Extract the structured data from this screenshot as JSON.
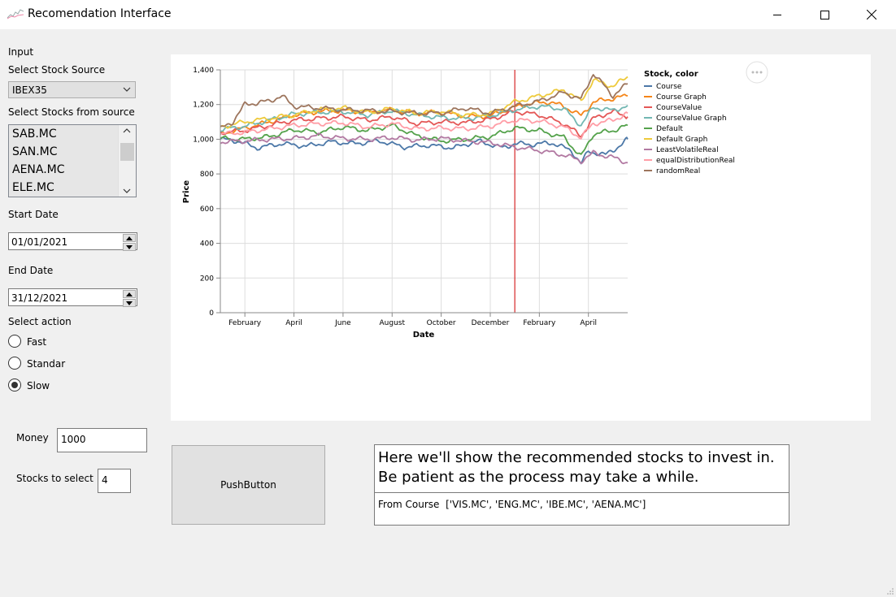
{
  "window": {
    "title": "Recomendation Interface",
    "icon": "chart-icon",
    "controls": [
      "minimize-icon",
      "maximize-icon",
      "close-icon"
    ]
  },
  "input": {
    "section_label": "Input",
    "source_label": "Select Stock Source",
    "source_value": "IBEX35",
    "stocks_label": "Select Stocks from source",
    "stocks": [
      "SAB.MC",
      "SAN.MC",
      "AENA.MC",
      "ELE.MC"
    ],
    "start_label": "Start Date",
    "start_value": "01/01/2021",
    "end_label": "End Date",
    "end_value": "31/12/2021",
    "action_label": "Select action",
    "actions": [
      "Fast",
      "Standar",
      "Slow"
    ],
    "selected_action": "Slow",
    "money_label": "Money",
    "money_value": "1000",
    "count_label": "Stocks to select",
    "count_value": "4"
  },
  "button": {
    "label": "PushButton"
  },
  "results": {
    "heading_line1": "Here we'll show the recommended stocks to invest in.",
    "heading_line2": "Be patient as the process may take a while.",
    "label": "From Course",
    "value": "['VIS.MC', 'ENG.MC', 'IBE.MC', 'AENA.MC']"
  },
  "chart_data": {
    "type": "line",
    "xlabel": "Date",
    "ylabel": "Price",
    "ylim": [
      0,
      1400
    ],
    "yticks": [
      0,
      200,
      400,
      600,
      800,
      1000,
      1200,
      1400
    ],
    "x_tick_labels": [
      "February",
      "April",
      "June",
      "August",
      "October",
      "December",
      "February",
      "April"
    ],
    "x_domain_months": [
      0,
      16.6
    ],
    "tick_months": [
      1,
      3,
      5,
      7,
      9,
      11,
      13,
      15
    ],
    "marker_month": 12,
    "marker_color": "#d62728",
    "grid": true,
    "legend_title": "Stock, color",
    "legend_position": "right",
    "series": [
      {
        "name": "Course",
        "color": "#4c78a8",
        "values": [
          [
            0,
            1000
          ],
          [
            0.7,
            990
          ],
          [
            1.5,
            950
          ],
          [
            2.5,
            975
          ],
          [
            3.5,
            960
          ],
          [
            4.5,
            985
          ],
          [
            5.5,
            975
          ],
          [
            6.5,
            990
          ],
          [
            7.5,
            955
          ],
          [
            8.5,
            965
          ],
          [
            9.5,
            950
          ],
          [
            10.5,
            990
          ],
          [
            11.5,
            950
          ],
          [
            12,
            975
          ],
          [
            12.8,
            970
          ],
          [
            13.5,
            980
          ],
          [
            14.3,
            935
          ],
          [
            14.7,
            860
          ],
          [
            15,
            930
          ],
          [
            15.7,
            910
          ],
          [
            16.2,
            955
          ],
          [
            16.6,
            1000
          ]
        ]
      },
      {
        "name": "Course Graph",
        "color": "#f58518",
        "values": [
          [
            0,
            1030
          ],
          [
            1,
            1065
          ],
          [
            2,
            1100
          ],
          [
            3,
            1140
          ],
          [
            4,
            1160
          ],
          [
            5,
            1165
          ],
          [
            6,
            1155
          ],
          [
            7,
            1170
          ],
          [
            8,
            1150
          ],
          [
            9,
            1155
          ],
          [
            10,
            1130
          ],
          [
            11,
            1135
          ],
          [
            12,
            1185
          ],
          [
            12.6,
            1205
          ],
          [
            13.4,
            1215
          ],
          [
            14,
            1190
          ],
          [
            14.7,
            1135
          ],
          [
            15.2,
            1215
          ],
          [
            16,
            1235
          ],
          [
            16.6,
            1250
          ]
        ]
      },
      {
        "name": "CourseValue",
        "color": "#e45756",
        "values": [
          [
            0,
            1040
          ],
          [
            1,
            1050
          ],
          [
            2,
            1080
          ],
          [
            3,
            1110
          ],
          [
            4,
            1120
          ],
          [
            5,
            1130
          ],
          [
            6,
            1110
          ],
          [
            7,
            1130
          ],
          [
            8,
            1090
          ],
          [
            9,
            1100
          ],
          [
            10,
            1095
          ],
          [
            11,
            1115
          ],
          [
            12,
            1160
          ],
          [
            13,
            1140
          ],
          [
            14,
            1090
          ],
          [
            14.7,
            1020
          ],
          [
            15.2,
            1120
          ],
          [
            16,
            1160
          ],
          [
            16.6,
            1130
          ]
        ]
      },
      {
        "name": "CourseValue Graph",
        "color": "#72b7b2",
        "values": [
          [
            0,
            1055
          ],
          [
            1,
            1075
          ],
          [
            2,
            1110
          ],
          [
            3,
            1145
          ],
          [
            4,
            1155
          ],
          [
            5,
            1160
          ],
          [
            6,
            1140
          ],
          [
            7,
            1165
          ],
          [
            8,
            1140
          ],
          [
            9,
            1125
          ],
          [
            10,
            1120
          ],
          [
            11,
            1135
          ],
          [
            12,
            1170
          ],
          [
            13,
            1190
          ],
          [
            14,
            1175
          ],
          [
            14.7,
            1080
          ],
          [
            15.2,
            1185
          ],
          [
            16,
            1165
          ],
          [
            16.6,
            1195
          ]
        ]
      },
      {
        "name": "Default",
        "color": "#54a24b",
        "values": [
          [
            0,
            1005
          ],
          [
            1,
            1000
          ],
          [
            2,
            1015
          ],
          [
            3,
            1055
          ],
          [
            4,
            1040
          ],
          [
            5,
            1070
          ],
          [
            6,
            1050
          ],
          [
            7,
            1080
          ],
          [
            8,
            1020
          ],
          [
            9,
            990
          ],
          [
            10,
            1000
          ],
          [
            11,
            1015
          ],
          [
            12,
            1065
          ],
          [
            13,
            1050
          ],
          [
            14,
            1010
          ],
          [
            14.7,
            900
          ],
          [
            15.2,
            1030
          ],
          [
            16,
            1050
          ],
          [
            16.6,
            1080
          ]
        ]
      },
      {
        "name": "Default Graph",
        "color": "#eeca3b",
        "values": [
          [
            0,
            1070
          ],
          [
            1,
            1100
          ],
          [
            2,
            1120
          ],
          [
            3,
            1140
          ],
          [
            4,
            1170
          ],
          [
            5,
            1180
          ],
          [
            6,
            1155
          ],
          [
            7,
            1175
          ],
          [
            8,
            1150
          ],
          [
            9,
            1160
          ],
          [
            10,
            1140
          ],
          [
            11,
            1145
          ],
          [
            12,
            1215
          ],
          [
            13,
            1250
          ],
          [
            14,
            1285
          ],
          [
            14.7,
            1220
          ],
          [
            15.2,
            1340
          ],
          [
            16,
            1305
          ],
          [
            16.6,
            1360
          ]
        ]
      },
      {
        "name": "LeastVolatileReal",
        "color": "#b279a2",
        "values": [
          [
            0,
            985
          ],
          [
            1,
            990
          ],
          [
            2,
            1000
          ],
          [
            3,
            1005
          ],
          [
            4,
            1020
          ],
          [
            5,
            1005
          ],
          [
            6,
            1000
          ],
          [
            7,
            1010
          ],
          [
            8,
            995
          ],
          [
            9,
            1005
          ],
          [
            10,
            990
          ],
          [
            11,
            980
          ],
          [
            12,
            955
          ],
          [
            13,
            935
          ],
          [
            14,
            910
          ],
          [
            14.7,
            875
          ],
          [
            15.2,
            920
          ],
          [
            16,
            895
          ],
          [
            16.6,
            865
          ]
        ]
      },
      {
        "name": "equalDistributionReal",
        "color": "#ff9da6",
        "values": [
          [
            0,
            1030
          ],
          [
            1,
            1040
          ],
          [
            2,
            1060
          ],
          [
            3,
            1080
          ],
          [
            4,
            1090
          ],
          [
            5,
            1095
          ],
          [
            6,
            1070
          ],
          [
            7,
            1090
          ],
          [
            8,
            1060
          ],
          [
            9,
            1065
          ],
          [
            10,
            1060
          ],
          [
            11,
            1075
          ],
          [
            12,
            1110
          ],
          [
            13,
            1105
          ],
          [
            14,
            1070
          ],
          [
            14.7,
            1010
          ],
          [
            15.2,
            1090
          ],
          [
            16,
            1110
          ],
          [
            16.6,
            1150
          ]
        ]
      },
      {
        "name": "randomReal",
        "color": "#9d755d",
        "values": [
          [
            0,
            1060
          ],
          [
            0.5,
            1100
          ],
          [
            1,
            1200
          ],
          [
            1.5,
            1210
          ],
          [
            2,
            1220
          ],
          [
            2.5,
            1250
          ],
          [
            3,
            1190
          ],
          [
            4,
            1180
          ],
          [
            5,
            1170
          ],
          [
            6,
            1165
          ],
          [
            7,
            1160
          ],
          [
            8,
            1150
          ],
          [
            9,
            1150
          ],
          [
            10,
            1180
          ],
          [
            11,
            1150
          ],
          [
            12,
            1190
          ],
          [
            13,
            1220
          ],
          [
            14,
            1270
          ],
          [
            14.7,
            1230
          ],
          [
            15.2,
            1380
          ],
          [
            16,
            1250
          ],
          [
            16.6,
            1320
          ]
        ]
      }
    ]
  }
}
